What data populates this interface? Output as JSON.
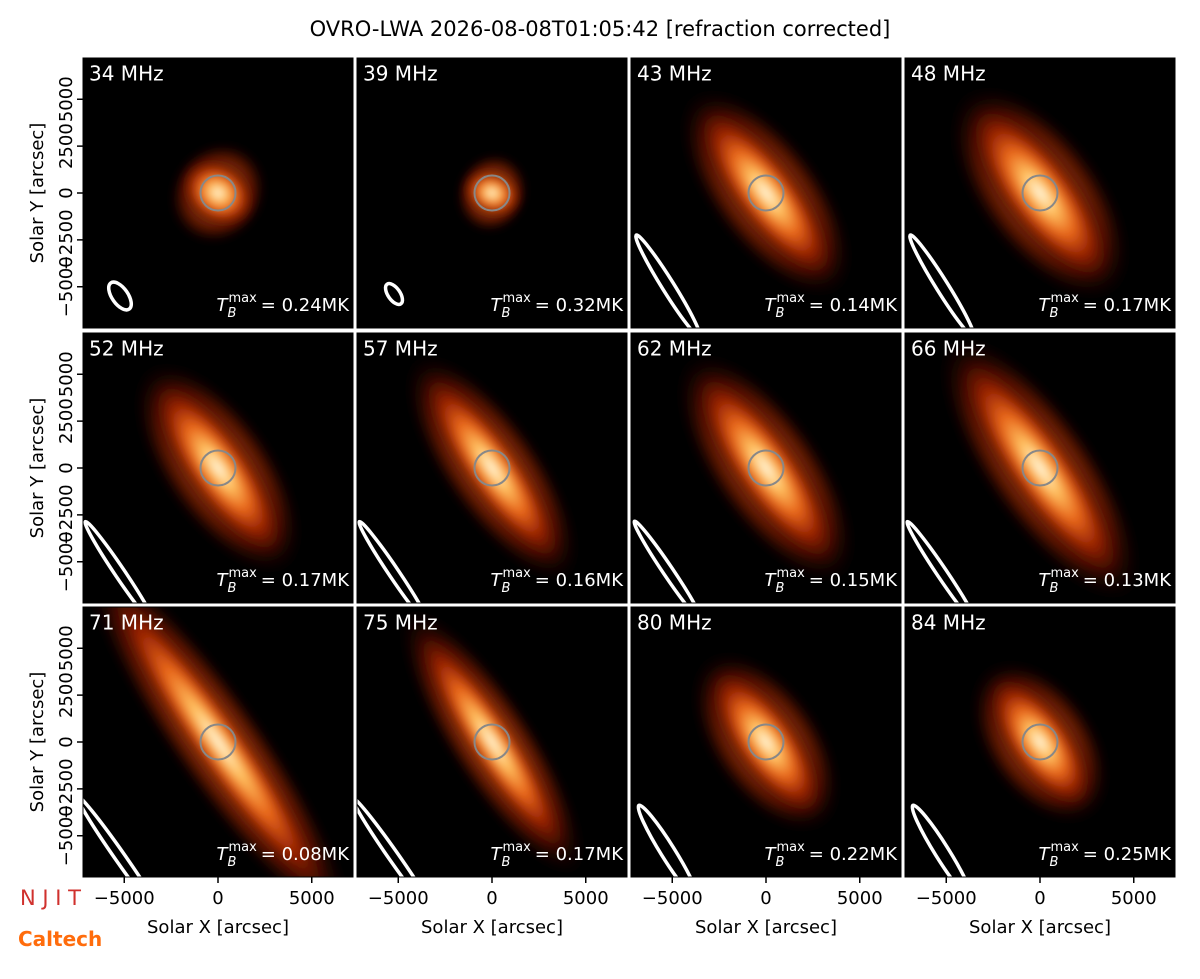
{
  "title": "OVRO-LWA 2026-08-08T01:05:42 [refraction corrected]",
  "logos": [
    "N J I T",
    "Caltech"
  ],
  "tb_symbol": {
    "base": "T",
    "sub": "B",
    "sup": "max"
  },
  "axes": {
    "xlabel": "Solar X [arcsec]",
    "ylabel": "Solar Y [arcsec]",
    "xlim": [
      -7200,
      7200
    ],
    "ylim": [
      -7200,
      7200
    ],
    "xticks": [
      {
        "value": -5000,
        "label": "−5000"
      },
      0,
      5000
    ],
    "yticks": [
      {
        "value": -5000,
        "label": "−5000"
      },
      {
        "value": -2500,
        "label": "−2500"
      },
      0,
      2500,
      5000
    ]
  },
  "chart_data": [
    {
      "type": "image",
      "label": "34 MHz",
      "tmax_label": "= 0.24MK"
    },
    {
      "type": "image",
      "label": "39 MHz",
      "tmax_label": "= 0.32MK"
    },
    {
      "type": "image",
      "label": "43 MHz",
      "tmax_label": "= 0.14MK"
    },
    {
      "type": "image",
      "label": "48 MHz",
      "tmax_label": "= 0.17MK"
    },
    {
      "type": "image",
      "label": "52 MHz",
      "tmax_label": "= 0.17MK"
    },
    {
      "type": "image",
      "label": "57 MHz",
      "tmax_label": "= 0.16MK"
    },
    {
      "type": "image",
      "label": "62 MHz",
      "tmax_label": "= 0.15MK"
    },
    {
      "type": "image",
      "label": "66 MHz",
      "tmax_label": "= 0.13MK"
    },
    {
      "type": "image",
      "label": "71 MHz",
      "tmax_label": "= 0.08MK"
    },
    {
      "type": "image",
      "label": "75 MHz",
      "tmax_label": "= 0.17MK"
    },
    {
      "type": "image",
      "label": "80 MHz",
      "tmax_label": "= 0.22MK"
    },
    {
      "type": "image",
      "label": "84 MHz",
      "tmax_label": "= 0.25MK"
    }
  ]
}
